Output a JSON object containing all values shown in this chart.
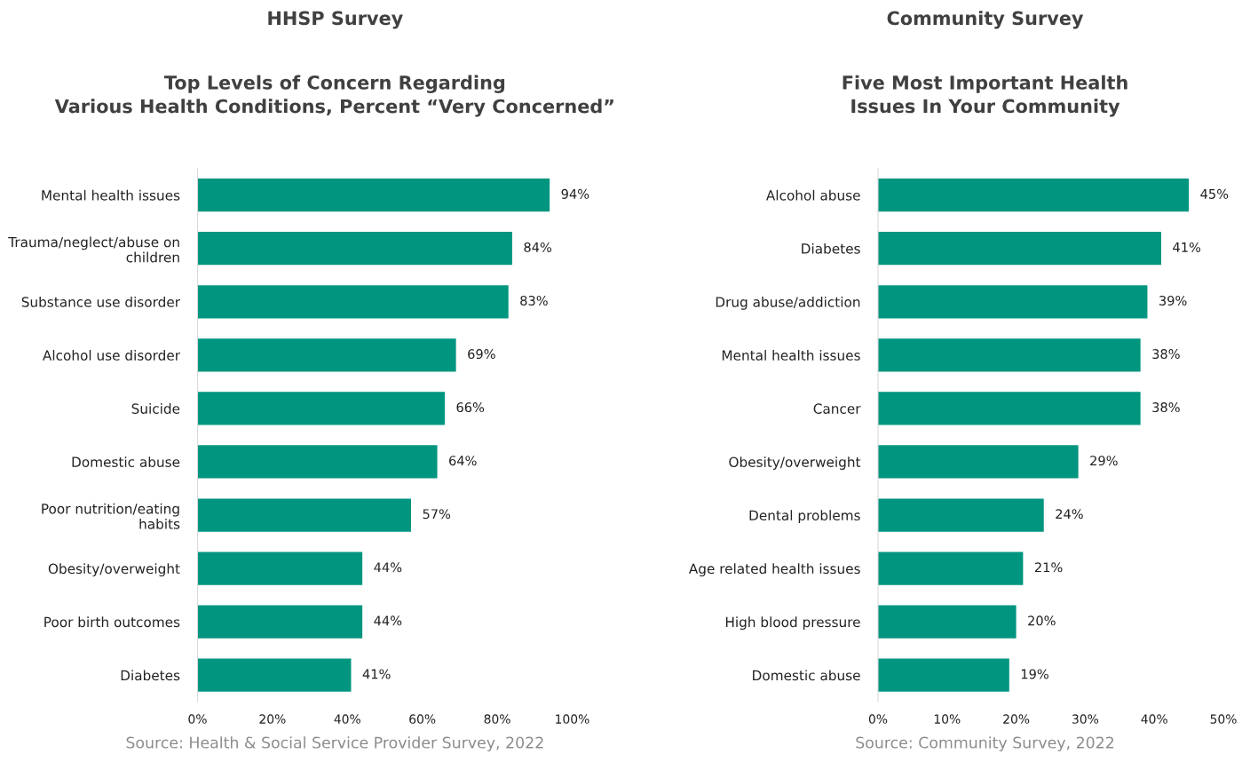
{
  "chart_data": [
    {
      "type": "bar",
      "orientation": "horizontal",
      "title": "HHSP Survey",
      "subtitle": "Top Levels of Concern Regarding\nVarious Health Conditions, Percent “Very Concerned”",
      "categories": [
        "Mental health issues",
        "Trauma/neglect/abuse on children",
        "Substance use disorder",
        "Alcohol use disorder",
        "Suicide",
        "Domestic abuse",
        "Poor nutrition/eating habits",
        "Obesity/overweight",
        "Poor birth outcomes",
        "Diabetes"
      ],
      "values": [
        94,
        84,
        83,
        69,
        66,
        64,
        57,
        44,
        44,
        41
      ],
      "value_labels": [
        "94%",
        "84%",
        "83%",
        "69%",
        "66%",
        "64%",
        "57%",
        "44%",
        "44%",
        "41%"
      ],
      "color": "#00957f",
      "xlim": [
        0,
        100
      ],
      "xticks": [
        {
          "value": 0,
          "label": "0%"
        },
        {
          "value": 20,
          "label": "20%"
        },
        {
          "value": 40,
          "label": "40%"
        },
        {
          "value": 60,
          "label": "60%"
        },
        {
          "value": 80,
          "label": "80%"
        },
        {
          "value": 100,
          "label": "100%"
        }
      ],
      "grid": false,
      "legend": false,
      "annotations": [
        "Source: Health & Social Service Provider Survey, 2022"
      ]
    },
    {
      "type": "bar",
      "orientation": "horizontal",
      "title": "Community Survey",
      "subtitle": "Five Most Important Health\nIssues In Your Community",
      "categories": [
        "Alcohol abuse",
        "Diabetes",
        "Drug abuse/addiction",
        "Mental health issues",
        "Cancer",
        "Obesity/overweight",
        "Dental problems",
        "Age related health issues",
        "High blood pressure",
        "Domestic abuse"
      ],
      "values": [
        45,
        41,
        39,
        38,
        38,
        29,
        24,
        21,
        20,
        19
      ],
      "value_labels": [
        "45%",
        "41%",
        "39%",
        "38%",
        "38%",
        "29%",
        "24%",
        "21%",
        "20%",
        "19%"
      ],
      "color": "#00957f",
      "xlim": [
        0,
        50
      ],
      "xticks": [
        {
          "value": 0,
          "label": "0%"
        },
        {
          "value": 10,
          "label": "10%"
        },
        {
          "value": 20,
          "label": "20%"
        },
        {
          "value": 30,
          "label": "30%"
        },
        {
          "value": 40,
          "label": "40%"
        },
        {
          "value": 50,
          "label": "50%"
        }
      ],
      "grid": false,
      "legend": false,
      "annotations": [
        "Source: Community Survey, 2022"
      ]
    }
  ]
}
